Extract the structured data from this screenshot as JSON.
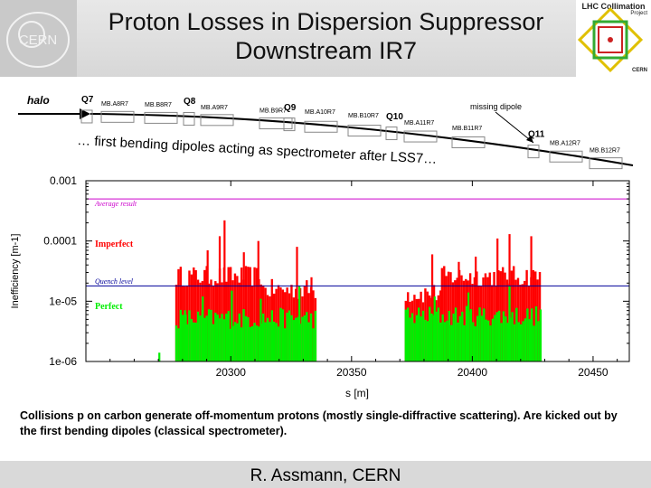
{
  "slide": {
    "title_line1": "Proton Losses in Dispersion Suppressor",
    "title_line2": "Downstream IR7",
    "caption": "Collisions p on carbon generate off-momentum protons (mostly single-diffractive scattering). Are kicked out by the first bending dipoles (classical spectrometer).",
    "footer": "R. Assmann, CERN",
    "cern_logo_text": "CERN",
    "lhc_logo_title": "LHC Collimation",
    "lhc_logo_sub": "Project",
    "lhc_logo_cern": "CERN"
  },
  "beamline": {
    "halo_label": "halo",
    "spectrometer_text": "… first bending dipoles acting as spectrometer after LSS7…",
    "missing_dipole_label": "missing dipole",
    "labels": [
      "Q7",
      "MB.A8R7",
      "MB.B8R7",
      "Q8",
      "MB.A9R7",
      "MB.B9R7",
      "Q9",
      "MB.A10R7",
      "MB.B10R7",
      "Q10",
      "MB.A11R7",
      "MB.B11R7",
      "Q11",
      "MB.A12R7",
      "MB.B12R7"
    ]
  },
  "colors": {
    "imperfect": "#ff0000",
    "perfect": "#00ee00",
    "average_result": "#cc00cc",
    "quench_level": "#000099"
  },
  "chart_data": {
    "type": "bar",
    "xlabel": "s [m]",
    "ylabel": "Inefficiency [m-1]",
    "xscale": "linear",
    "yscale": "log",
    "xlim": [
      20240,
      20465
    ],
    "ylim": [
      1e-06,
      0.001
    ],
    "xticks": [
      20300,
      20350,
      20400,
      20450
    ],
    "ytick_labels": [
      "0.001",
      "0.0001",
      "1e-05",
      "1e-06"
    ],
    "reference_lines": [
      {
        "name": "Average result",
        "value": 0.0005
      },
      {
        "name": "Quench level",
        "value": 1.8e-05
      }
    ],
    "series": [
      {
        "name": "Imperfect",
        "segments": [
          {
            "s_start": 20277,
            "s_end": 20313,
            "typical": 2.5e-05
          },
          {
            "s_start": 20313,
            "s_end": 20335,
            "typical": 1.5e-05
          },
          {
            "s_start": 20372,
            "s_end": 20387,
            "typical": 1.3e-05
          },
          {
            "s_start": 20387,
            "s_end": 20428,
            "typical": 2.5e-05
          }
        ],
        "peaks": [
          {
            "s": 20290,
            "value": 7e-05
          },
          {
            "s": 20295,
            "value": 0.00012
          },
          {
            "s": 20297,
            "value": 0.00022
          },
          {
            "s": 20305,
            "value": 6.5e-05
          },
          {
            "s": 20311,
            "value": 0.0001
          },
          {
            "s": 20327,
            "value": 8e-05
          },
          {
            "s": 20333,
            "value": 2.5e-05
          },
          {
            "s": 20383,
            "value": 6e-05
          },
          {
            "s": 20394,
            "value": 4.5e-05
          },
          {
            "s": 20401,
            "value": 5.5e-05
          },
          {
            "s": 20410,
            "value": 0.00011
          },
          {
            "s": 20415,
            "value": 0.00013
          },
          {
            "s": 20424,
            "value": 0.00012
          }
        ]
      },
      {
        "name": "Perfect",
        "segments": [
          {
            "s_start": 20277,
            "s_end": 20335,
            "typical": 5e-06
          },
          {
            "s_start": 20372,
            "s_end": 20428,
            "typical": 5.5e-06
          }
        ],
        "peaks": [
          {
            "s": 20270,
            "value": 1.4e-06
          },
          {
            "s": 20281,
            "value": 6e-06
          },
          {
            "s": 20288,
            "value": 1.2e-05
          },
          {
            "s": 20300,
            "value": 1.5e-05
          },
          {
            "s": 20312,
            "value": 1.1e-05
          },
          {
            "s": 20328,
            "value": 1.8e-05
          },
          {
            "s": 20384,
            "value": 1.2e-05
          },
          {
            "s": 20398,
            "value": 1.4e-05
          },
          {
            "s": 20415,
            "value": 1.8e-05
          }
        ]
      }
    ]
  }
}
